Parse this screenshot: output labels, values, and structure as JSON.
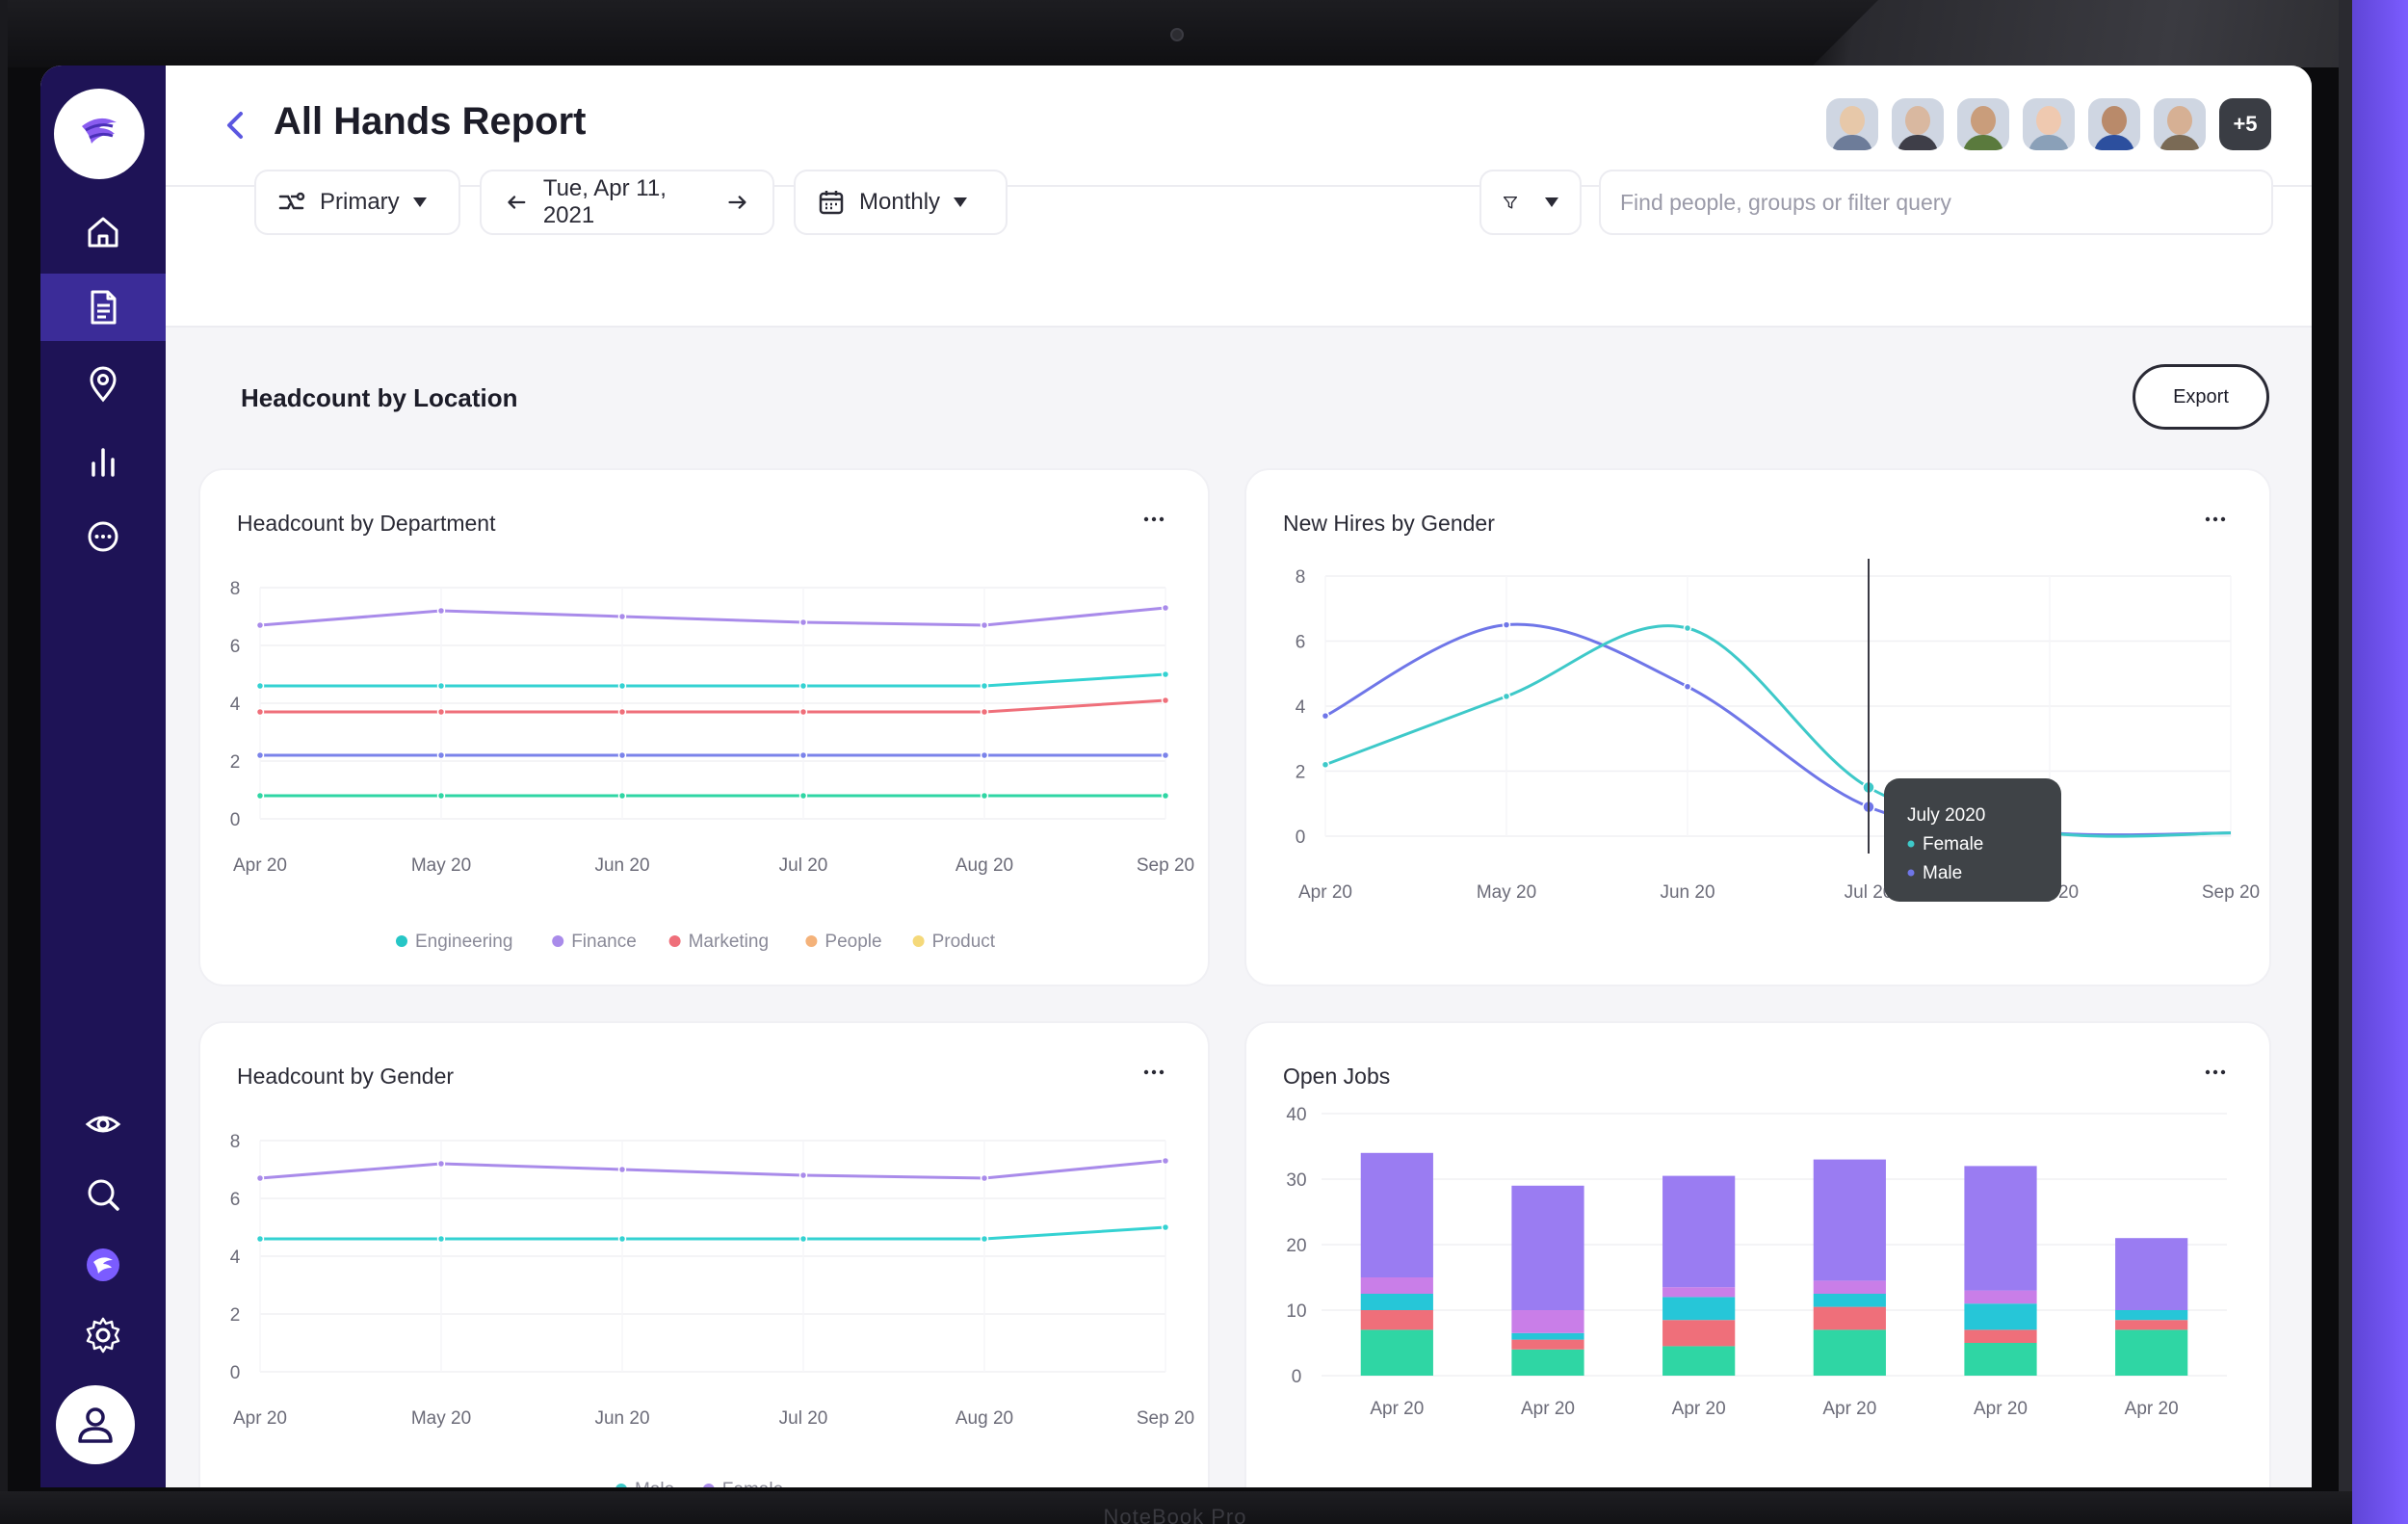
{
  "device": {
    "brand": "NoteBook Pro"
  },
  "header": {
    "title": "All Hands Report",
    "avatars": [
      {
        "name": "member-1",
        "skin": "#e7c8a9",
        "shirt": "#6d7c99"
      },
      {
        "name": "member-2",
        "skin": "#d9b8a0",
        "shirt": "#3e3e48"
      },
      {
        "name": "member-3",
        "skin": "#c99d7b",
        "shirt": "#5a7a3d"
      },
      {
        "name": "member-4",
        "skin": "#efc9b0",
        "shirt": "#8aa0b8"
      },
      {
        "name": "member-5",
        "skin": "#b98a6a",
        "shirt": "#2c4f9e"
      },
      {
        "name": "member-6",
        "skin": "#d6b094",
        "shirt": "#7a6a55"
      }
    ],
    "more_count": "+5"
  },
  "filters": {
    "group_label": "Primary",
    "date_label": "Tue, Apr 11, 2021",
    "period_label": "Monthly",
    "search_placeholder": "Find people, groups or filter query"
  },
  "section": {
    "title": "Headcount by Location",
    "export_label": "Export"
  },
  "colors": {
    "sidebar": "#1e1356",
    "accent": "#7b5cff",
    "engineering": "#26c6c6",
    "finance": "#a98bea",
    "marketing": "#ef6f7a",
    "people": "#f4b27a",
    "product": "#f5d97a",
    "male": "#6f76e8",
    "female": "#3ec9c9"
  },
  "chart_data": [
    {
      "id": "dept",
      "type": "line",
      "title": "Headcount by Department",
      "categories": [
        "Apr 20",
        "May 20",
        "Jun 20",
        "Jul 20",
        "Aug 20",
        "Sep 20"
      ],
      "ylim": [
        0,
        8
      ],
      "yticks": [
        "8",
        "6",
        "4",
        "2",
        "0"
      ],
      "legend": [
        "Engineering",
        "Finance",
        "Marketing",
        "People",
        "Product"
      ],
      "series": [
        {
          "color": "#a98bea",
          "values": [
            6.7,
            7.2,
            7.0,
            6.8,
            6.7,
            7.3
          ]
        },
        {
          "color": "#34d2d2",
          "values": [
            4.6,
            4.6,
            4.6,
            4.6,
            4.6,
            5.0
          ]
        },
        {
          "color": "#ef6f7a",
          "values": [
            3.7,
            3.7,
            3.7,
            3.7,
            3.7,
            4.1
          ]
        },
        {
          "color": "#7b83ea",
          "values": [
            2.2,
            2.2,
            2.2,
            2.2,
            2.2,
            2.2
          ]
        },
        {
          "color": "#2fd6a4",
          "values": [
            0.8,
            0.8,
            0.8,
            0.8,
            0.8,
            0.8
          ]
        }
      ]
    },
    {
      "id": "hires",
      "type": "line",
      "title": "New Hires by Gender",
      "categories": [
        "Apr 20",
        "May 20",
        "Jun 20",
        "Jul 20",
        "Aug 20",
        "Sep 20"
      ],
      "ylim": [
        0,
        8
      ],
      "yticks": [
        "8",
        "6",
        "4",
        "2",
        "0"
      ],
      "legend": [
        "Male",
        "Female"
      ],
      "series": [
        {
          "name": "Male",
          "color": "#6f76e8",
          "values": [
            3.7,
            6.5,
            4.6,
            0.9,
            0.1,
            0.1
          ]
        },
        {
          "name": "Female",
          "color": "#3ec9c9",
          "values": [
            2.2,
            4.3,
            6.4,
            1.5,
            0.1,
            0.1
          ]
        }
      ],
      "tooltip": {
        "title": "July 2020",
        "items": [
          "Female",
          "Male"
        ],
        "index": 3
      }
    },
    {
      "id": "gender",
      "type": "line",
      "title": "Headcount by Gender",
      "categories": [
        "Apr 20",
        "May 20",
        "Jun 20",
        "Jul 20",
        "Aug 20",
        "Sep 20"
      ],
      "ylim": [
        0,
        8
      ],
      "yticks": [
        "8",
        "6",
        "4",
        "2",
        "0"
      ],
      "legend": [
        "Male",
        "Female"
      ],
      "series": [
        {
          "color": "#a98bea",
          "values": [
            6.7,
            7.2,
            7.0,
            6.8,
            6.7,
            7.3
          ]
        },
        {
          "color": "#34d2d2",
          "values": [
            4.6,
            4.6,
            4.6,
            4.6,
            4.6,
            5.0
          ]
        }
      ]
    },
    {
      "id": "jobs",
      "type": "bar",
      "title": "Open Jobs",
      "categories": [
        "Apr 20",
        "Apr 20",
        "Apr 20",
        "Apr 20",
        "Apr 20",
        "Apr 20"
      ],
      "ylim": [
        0,
        40
      ],
      "yticks": [
        "40",
        "30",
        "20",
        "10",
        "0"
      ],
      "stack_colors": [
        "#2fd6a4",
        "#ef6f7a",
        "#26c6d8",
        "#c97ee8",
        "#9a7cf2"
      ],
      "stacks": [
        [
          7,
          3,
          2.5,
          2.5,
          19
        ],
        [
          4,
          1.5,
          1,
          3.5,
          19
        ],
        [
          4.5,
          4,
          3.5,
          1.5,
          17
        ],
        [
          7,
          3.5,
          2,
          2,
          18.5
        ],
        [
          5,
          2,
          4,
          2,
          19
        ],
        [
          7,
          1.5,
          1.5,
          0,
          11
        ]
      ]
    }
  ]
}
